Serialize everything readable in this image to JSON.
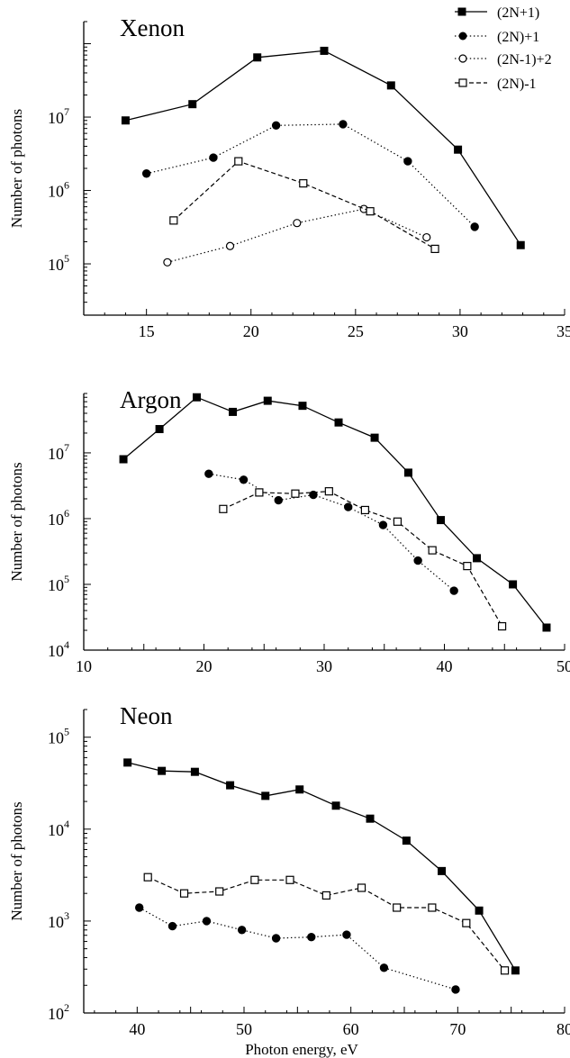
{
  "legend": {
    "placement": "top-right",
    "entries": [
      {
        "label": "(2N+1)",
        "marker": "filled-square",
        "dash": "solid"
      },
      {
        "label": "(2N)+1",
        "marker": "filled-circle",
        "dash": "dotted"
      },
      {
        "label": "(2N-1)+2",
        "marker": "open-circle",
        "dash": "dotted"
      },
      {
        "label": "(2N)-1",
        "marker": "open-square",
        "dash": "dashed"
      }
    ]
  },
  "chart_data": [
    {
      "type": "line",
      "title": "Xenon",
      "xlabel": "",
      "ylabel": "Number of photons",
      "xlim": [
        12,
        35
      ],
      "ylim": [
        20000,
        200000000
      ],
      "yscale": "log",
      "grid": false,
      "xticks": [
        "15",
        "20",
        "25",
        "30",
        "35"
      ],
      "yticks": [
        {
          "value": 100000,
          "base": "10",
          "exp": "5"
        },
        {
          "value": 1000000,
          "base": "10",
          "exp": "6"
        },
        {
          "value": 10000000,
          "base": "10",
          "exp": "7"
        }
      ],
      "series": [
        {
          "name": "(2N+1)",
          "x": [
            14.0,
            17.2,
            20.3,
            23.5,
            26.7,
            29.9,
            32.9
          ],
          "y": [
            9000000,
            15000000,
            65000000,
            80000000,
            27000000,
            3600000,
            180000
          ]
        },
        {
          "name": "(2N)+1",
          "x": [
            15.0,
            18.2,
            21.2,
            24.4,
            27.5,
            30.7
          ],
          "y": [
            1700000,
            2800000,
            7700000,
            8000000,
            2500000,
            320000
          ]
        },
        {
          "name": "(2N-1)+2",
          "x": [
            16.0,
            19.0,
            22.2,
            25.4,
            28.4
          ],
          "y": [
            105000,
            175000,
            360000,
            560000,
            230000
          ]
        },
        {
          "name": "(2N)-1",
          "x": [
            16.3,
            19.4,
            22.5,
            25.7,
            28.8
          ],
          "y": [
            390000,
            2500000,
            1250000,
            520000,
            160000
          ]
        }
      ]
    },
    {
      "type": "line",
      "title": "Argon",
      "xlabel": "",
      "ylabel": "Number of photons",
      "xlim": [
        10,
        50
      ],
      "ylim": [
        10000,
        80000000
      ],
      "yscale": "log",
      "grid": false,
      "xticks": [
        "10",
        "20",
        "30",
        "40",
        "50"
      ],
      "yticks": [
        {
          "value": 10000,
          "base": "10",
          "exp": "4"
        },
        {
          "value": 100000,
          "base": "10",
          "exp": "5"
        },
        {
          "value": 1000000,
          "base": "10",
          "exp": "6"
        },
        {
          "value": 10000000,
          "base": "10",
          "exp": "7"
        }
      ],
      "series": [
        {
          "name": "(2N+1)",
          "x": [
            13.3,
            16.3,
            19.4,
            22.4,
            25.3,
            28.2,
            31.2,
            34.2,
            37.0,
            39.7,
            42.7,
            45.7,
            48.5
          ],
          "y": [
            8000000,
            23000000,
            70000000,
            42000000,
            62000000,
            52000000,
            29000000,
            17000000,
            5000000,
            950000,
            250000,
            100000,
            22000
          ]
        },
        {
          "name": "(2N)+1",
          "x": [
            20.4,
            23.3,
            26.2,
            29.1,
            32.0,
            34.9,
            37.8,
            40.8
          ],
          "y": [
            4800000,
            3900000,
            1900000,
            2300000,
            1500000,
            800000,
            230000,
            80000
          ]
        },
        {
          "name": "(2N)-1",
          "x": [
            21.6,
            24.6,
            27.6,
            30.4,
            33.4,
            36.1,
            39.0,
            41.9,
            44.8
          ],
          "y": [
            1400000,
            2500000,
            2400000,
            2600000,
            1350000,
            900000,
            330000,
            190000,
            23000
          ]
        }
      ]
    },
    {
      "type": "line",
      "title": "Neon",
      "xlabel": "Photon energy, eV",
      "ylabel": "Number of photons",
      "xlim": [
        35,
        80
      ],
      "ylim": [
        100,
        200000
      ],
      "yscale": "log",
      "grid": false,
      "xticks": [
        "40",
        "50",
        "60",
        "70",
        "80"
      ],
      "yticks": [
        {
          "value": 100,
          "base": "10",
          "exp": "2"
        },
        {
          "value": 1000,
          "base": "10",
          "exp": "3"
        },
        {
          "value": 10000,
          "base": "10",
          "exp": "4"
        },
        {
          "value": 100000,
          "base": "10",
          "exp": "5"
        }
      ],
      "series": [
        {
          "name": "(2N+1)",
          "x": [
            39.1,
            42.3,
            45.4,
            48.7,
            52.0,
            55.2,
            58.6,
            61.8,
            65.2,
            68.5,
            72.0,
            75.4
          ],
          "y": [
            53000,
            43000,
            42000,
            30000,
            23000,
            27000,
            18000,
            13000,
            7500,
            3500,
            1300,
            290
          ]
        },
        {
          "name": "(2N)+1",
          "x": [
            40.2,
            43.3,
            46.5,
            49.8,
            53.0,
            56.3,
            59.6,
            63.1,
            69.8
          ],
          "y": [
            1400,
            880,
            1000,
            800,
            650,
            670,
            710,
            310,
            180
          ]
        },
        {
          "name": "(2N)-1",
          "x": [
            41.0,
            44.4,
            47.7,
            51.0,
            54.3,
            57.7,
            61.0,
            64.3,
            67.6,
            70.8,
            74.4
          ],
          "y": [
            3000,
            2000,
            2100,
            2800,
            2800,
            1900,
            2300,
            1400,
            1400,
            950,
            290
          ]
        }
      ]
    }
  ]
}
